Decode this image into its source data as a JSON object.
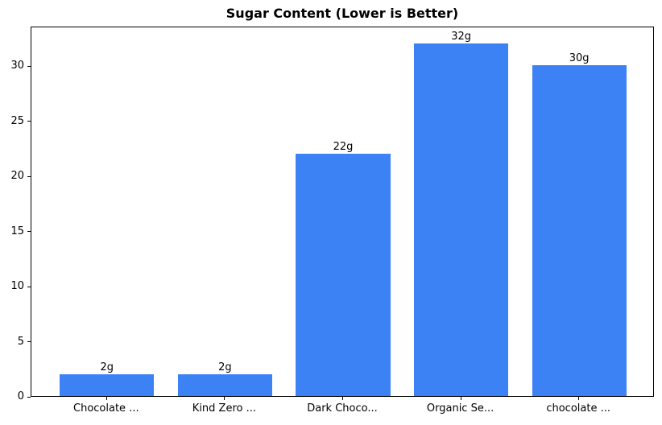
{
  "chart_data": {
    "type": "bar",
    "title": "Sugar Content (Lower is Better)",
    "categories": [
      "Chocolate ...",
      "Kind Zero ...",
      "Dark Choco...",
      "Organic Se...",
      "chocolate ..."
    ],
    "values": [
      2,
      2,
      22,
      32,
      30
    ],
    "bar_labels": [
      "2g",
      "2g",
      "22g",
      "32g",
      "30g"
    ],
    "bar_color": "#3d82f4",
    "xlabel": "",
    "ylabel": "",
    "ylim": [
      0,
      33.6
    ],
    "yticks": [
      0,
      5,
      10,
      15,
      20,
      25,
      30
    ],
    "grid": false,
    "legend_position": "none",
    "text_color": "#000000",
    "spine_color": "#000000",
    "background_color": "#ffffff"
  }
}
